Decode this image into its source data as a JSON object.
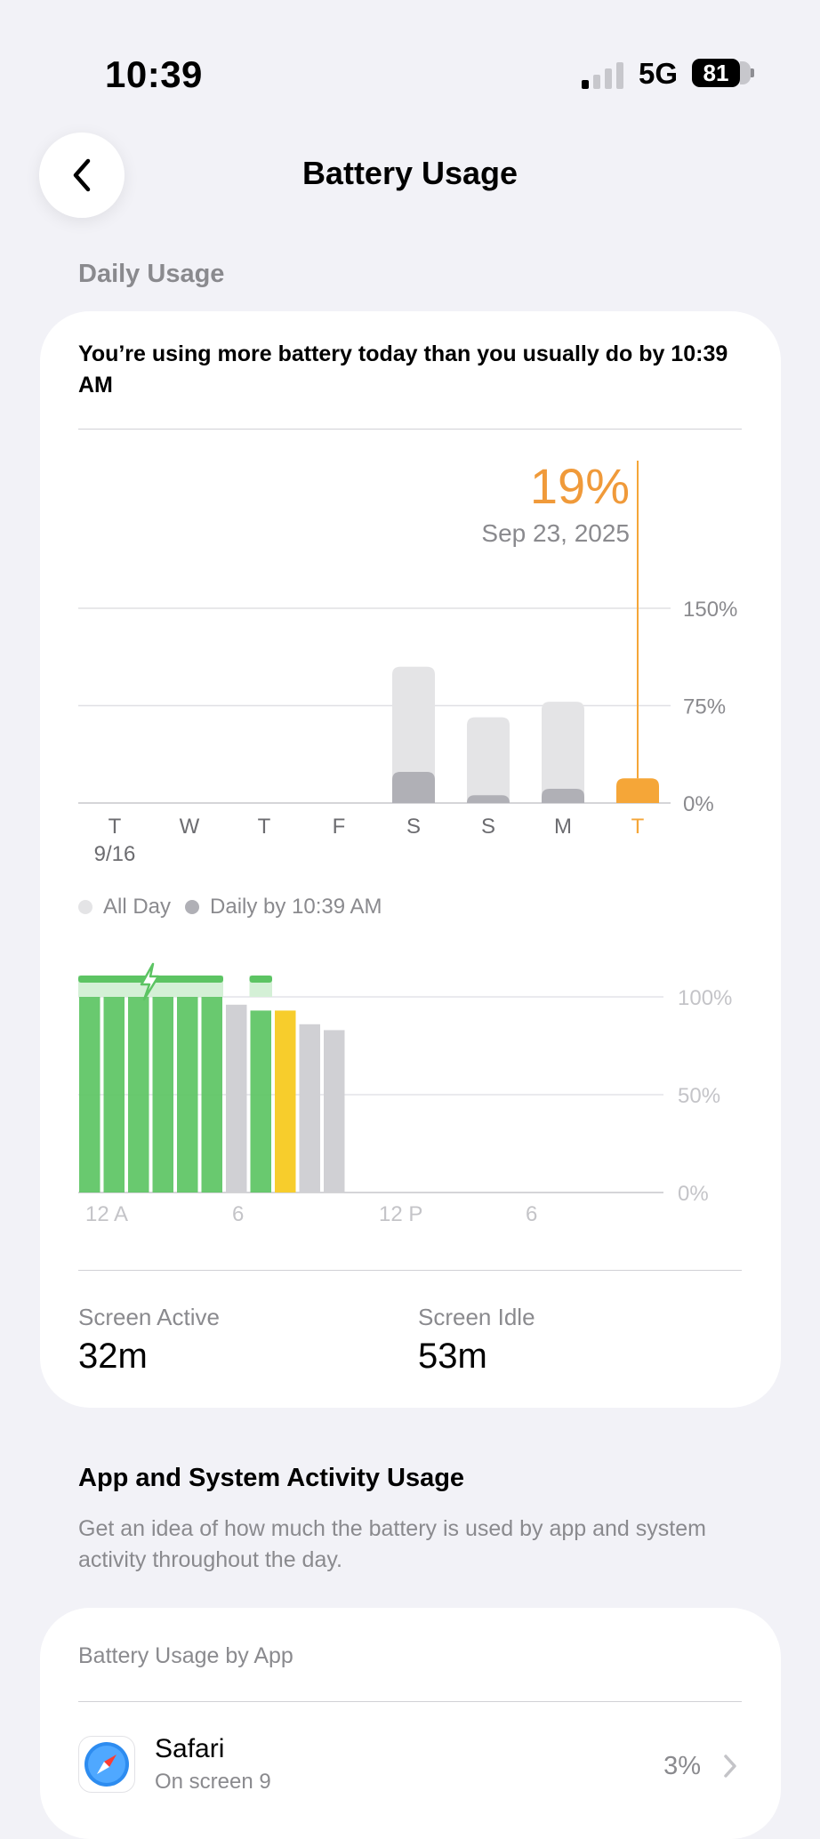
{
  "status_bar": {
    "time": "10:39",
    "network": "5G",
    "battery": "81"
  },
  "nav": {
    "title": "Battery Usage",
    "back_icon": "chevron-left-icon"
  },
  "daily_usage": {
    "section_label": "Daily Usage",
    "alert": "You’re using more battery today than you usually do by 10:39 AM",
    "selected_value": "19%",
    "selected_date": "Sep 23, 2025"
  },
  "legend": {
    "all_day": "All Day",
    "daily_by": "Daily by 10:39 AM"
  },
  "screen": {
    "active_label": "Screen Active",
    "active_value": "32m",
    "idle_label": "Screen Idle",
    "idle_value": "53m"
  },
  "app_activity": {
    "title": "App and System Activity Usage",
    "description": "Get an idea of how much the battery is used by app and system activity throughout the day.",
    "card_label": "Battery Usage by App",
    "apps": [
      {
        "name": "Safari",
        "sub": "On screen 9",
        "pct": "3%",
        "icon": "safari-compass-icon"
      }
    ]
  },
  "chart_data": [
    {
      "type": "bar",
      "categories": [
        "T",
        "W",
        "T",
        "F",
        "S",
        "S",
        "M",
        "T"
      ],
      "sub_labels": [
        "9/16",
        "",
        "",
        "",
        "",
        "",
        "",
        ""
      ],
      "y_ticks": [
        "150%",
        "75%",
        "0%"
      ],
      "ylim": [
        0,
        150
      ],
      "series": [
        {
          "name": "All Day",
          "values": [
            0,
            0,
            0,
            0,
            105,
            66,
            78,
            19
          ]
        },
        {
          "name": "Daily by 10:39 AM",
          "values": [
            0,
            0,
            0,
            0,
            24,
            6,
            11,
            19
          ]
        }
      ],
      "highlight_index": 7,
      "colors": {
        "all_day": "#e4e4e6",
        "daily_by": "#b0b0b6",
        "highlight": "#f5a638"
      }
    },
    {
      "type": "bar",
      "x_tick_labels": [
        "12 A",
        "6",
        "12 P",
        "6"
      ],
      "y_ticks": [
        "100%",
        "50%",
        "0%"
      ],
      "ylim": [
        0,
        100
      ],
      "hours": [
        0,
        1,
        2,
        3,
        4,
        5,
        6,
        7,
        8,
        9,
        10
      ],
      "levels": [
        100,
        100,
        100,
        100,
        100,
        100,
        96,
        93,
        93,
        86,
        83
      ],
      "states": [
        "charging",
        "charging",
        "charging",
        "charging",
        "charging",
        "charging",
        "idle",
        "charging",
        "low-power",
        "idle",
        "idle"
      ],
      "charging_ranges": [
        [
          0,
          6
        ],
        [
          7,
          8
        ]
      ],
      "charging_icon": "lightning-bolt-icon",
      "colors": {
        "charging": "#5cc463",
        "idle": "#d0d0d4",
        "low-power": "#f7cd2c",
        "charge_band": "#d4f0d6"
      }
    }
  ]
}
